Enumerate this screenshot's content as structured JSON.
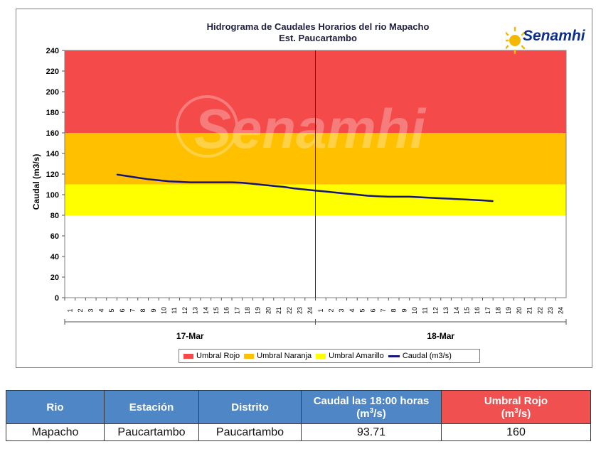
{
  "logo": {
    "text": "Senamhi",
    "watermark": "Senamhi"
  },
  "chart_data": {
    "type": "line",
    "title": "Hidrograma de Caudales Horarios del rio Mapacho",
    "subtitle": "Est. Paucartambo",
    "ylabel": "Caudal  (m3/s)",
    "xlabel": "",
    "ylim": [
      0,
      240
    ],
    "yticks": [
      0,
      20,
      40,
      60,
      80,
      100,
      120,
      140,
      160,
      180,
      200,
      220,
      240
    ],
    "days": [
      "17-Mar",
      "18-Mar"
    ],
    "hours_per_day": 24,
    "hour_labels": [
      "1",
      "2",
      "3",
      "4",
      "5",
      "6",
      "7",
      "8",
      "9",
      "10",
      "11",
      "12",
      "13",
      "14",
      "15",
      "16",
      "17",
      "18",
      "19",
      "20",
      "21",
      "22",
      "23",
      "24"
    ],
    "thresholds": [
      {
        "name": "Umbral Amarillo",
        "from": 80,
        "to": 110,
        "color": "#ffff00"
      },
      {
        "name": "Umbral Naranja",
        "from": 110,
        "to": 160,
        "color": "#ffc000"
      },
      {
        "name": "Umbral Rojo",
        "from": 160,
        "to": 240,
        "color": "#f54a4a"
      }
    ],
    "series": [
      {
        "name": "Caudal (m3/s)",
        "color": "#14147a",
        "points": [
          {
            "day": "17-Mar",
            "hour": 6,
            "value": 119.5
          },
          {
            "day": "17-Mar",
            "hour": 7,
            "value": 118.0
          },
          {
            "day": "17-Mar",
            "hour": 8,
            "value": 116.5
          },
          {
            "day": "17-Mar",
            "hour": 9,
            "value": 115.0
          },
          {
            "day": "17-Mar",
            "hour": 10,
            "value": 114.0
          },
          {
            "day": "17-Mar",
            "hour": 11,
            "value": 113.0
          },
          {
            "day": "17-Mar",
            "hour": 12,
            "value": 112.5
          },
          {
            "day": "17-Mar",
            "hour": 13,
            "value": 112.0
          },
          {
            "day": "17-Mar",
            "hour": 14,
            "value": 112.0
          },
          {
            "day": "17-Mar",
            "hour": 15,
            "value": 112.0
          },
          {
            "day": "17-Mar",
            "hour": 16,
            "value": 112.0
          },
          {
            "day": "17-Mar",
            "hour": 17,
            "value": 112.0
          },
          {
            "day": "17-Mar",
            "hour": 18,
            "value": 111.5
          },
          {
            "day": "17-Mar",
            "hour": 19,
            "value": 110.5
          },
          {
            "day": "17-Mar",
            "hour": 20,
            "value": 109.5
          },
          {
            "day": "17-Mar",
            "hour": 21,
            "value": 108.5
          },
          {
            "day": "17-Mar",
            "hour": 22,
            "value": 107.5
          },
          {
            "day": "17-Mar",
            "hour": 23,
            "value": 106.0
          },
          {
            "day": "17-Mar",
            "hour": 24,
            "value": 105.0
          },
          {
            "day": "18-Mar",
            "hour": 1,
            "value": 104.0
          },
          {
            "day": "18-Mar",
            "hour": 2,
            "value": 103.0
          },
          {
            "day": "18-Mar",
            "hour": 3,
            "value": 102.0
          },
          {
            "day": "18-Mar",
            "hour": 4,
            "value": 101.0
          },
          {
            "day": "18-Mar",
            "hour": 5,
            "value": 100.0
          },
          {
            "day": "18-Mar",
            "hour": 6,
            "value": 99.0
          },
          {
            "day": "18-Mar",
            "hour": 7,
            "value": 98.5
          },
          {
            "day": "18-Mar",
            "hour": 8,
            "value": 98.0
          },
          {
            "day": "18-Mar",
            "hour": 9,
            "value": 98.0
          },
          {
            "day": "18-Mar",
            "hour": 10,
            "value": 98.0
          },
          {
            "day": "18-Mar",
            "hour": 11,
            "value": 97.5
          },
          {
            "day": "18-Mar",
            "hour": 12,
            "value": 97.0
          },
          {
            "day": "18-Mar",
            "hour": 13,
            "value": 96.5
          },
          {
            "day": "18-Mar",
            "hour": 14,
            "value": 96.0
          },
          {
            "day": "18-Mar",
            "hour": 15,
            "value": 95.5
          },
          {
            "day": "18-Mar",
            "hour": 16,
            "value": 95.0
          },
          {
            "day": "18-Mar",
            "hour": 17,
            "value": 94.5
          },
          {
            "day": "18-Mar",
            "hour": 18,
            "value": 93.71
          }
        ]
      }
    ],
    "legend": [
      "Umbral Rojo",
      "Umbral Naranja",
      "Umbral Amarillo",
      "Caudal (m3/s)"
    ],
    "legend_position": "bottom"
  },
  "table": {
    "headers": [
      {
        "text": "Rio"
      },
      {
        "text": "Estación"
      },
      {
        "text": "Distrito"
      },
      {
        "line1": "Caudal las 18:00 horas",
        "line2_pre": "(m",
        "sup": "3",
        "line2_post": "/s)"
      },
      {
        "line1": "Umbral Rojo",
        "line2_pre": "(m",
        "sup": "3",
        "line2_post": "/s)"
      }
    ],
    "row": [
      "Mapacho",
      "Paucartambo",
      "Paucartambo",
      "93.71",
      "160"
    ]
  }
}
